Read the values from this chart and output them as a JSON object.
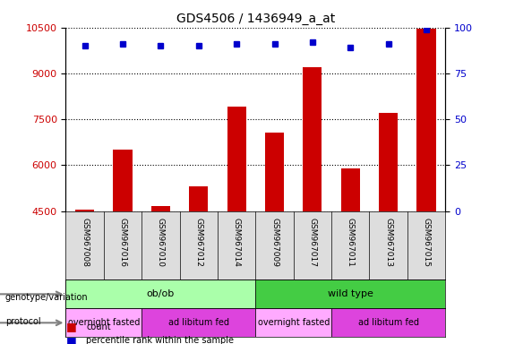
{
  "title": "GDS4506 / 1436949_a_at",
  "samples": [
    "GSM967008",
    "GSM967016",
    "GSM967010",
    "GSM967012",
    "GSM967014",
    "GSM967009",
    "GSM967017",
    "GSM967011",
    "GSM967013",
    "GSM967015"
  ],
  "counts": [
    4530,
    6500,
    4650,
    5300,
    7900,
    7050,
    9200,
    5900,
    7700,
    10450
  ],
  "percentile_ranks": [
    90,
    91,
    90,
    90,
    91,
    91,
    92,
    89,
    91,
    99
  ],
  "ylim_left": [
    4500,
    10500
  ],
  "ylim_right": [
    0,
    100
  ],
  "yticks_left": [
    4500,
    6000,
    7500,
    9000,
    10500
  ],
  "yticks_right": [
    0,
    25,
    50,
    75,
    100
  ],
  "bar_color": "#cc0000",
  "dot_color": "#0000cc",
  "grid_color": "#000000",
  "background_color": "#ffffff",
  "genotype_groups": [
    {
      "label": "ob/ob",
      "start": 0,
      "end": 5,
      "color": "#aaffaa"
    },
    {
      "label": "wild type",
      "start": 5,
      "end": 10,
      "color": "#44cc44"
    }
  ],
  "protocol_groups": [
    {
      "label": "overnight fasted",
      "start": 0,
      "end": 2,
      "color": "#ffaaff"
    },
    {
      "label": "ad libitum fed",
      "start": 2,
      "end": 5,
      "color": "#dd44dd"
    },
    {
      "label": "overnight fasted",
      "start": 5,
      "end": 7,
      "color": "#ffaaff"
    },
    {
      "label": "ad libitum fed",
      "start": 7,
      "end": 10,
      "color": "#dd44dd"
    }
  ],
  "legend_items": [
    {
      "label": "count",
      "color": "#cc0000",
      "marker": "s"
    },
    {
      "label": "percentile rank within the sample",
      "color": "#0000cc",
      "marker": "s"
    }
  ]
}
